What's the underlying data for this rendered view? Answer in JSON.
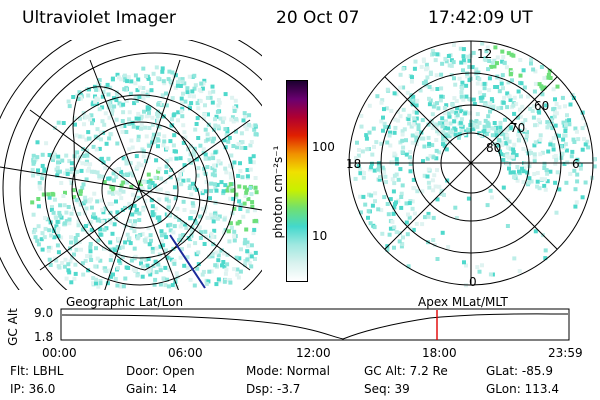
{
  "header": {
    "title": "Ultraviolet Imager",
    "date": "20 Oct 07",
    "time": "17:42:09 UT"
  },
  "colorbar": {
    "unit_label": "photon cm⁻²s⁻¹",
    "ticks": [
      "100",
      "10"
    ],
    "colors": [
      "#ffffff",
      "#d8f2ee",
      "#9fe8e0",
      "#43d8cc",
      "#70e070",
      "#c8f000",
      "#f0e000",
      "#f09000",
      "#e02000",
      "#b00030",
      "#6a0070",
      "#1c0030"
    ]
  },
  "left_panel": {
    "name": "geographic-projection"
  },
  "right_panel": {
    "mlt_labels": {
      "top": "12",
      "right": "6",
      "bottom": "0",
      "left": "18"
    },
    "lat_labels": [
      "60",
      "70",
      "80"
    ]
  },
  "timeline": {
    "left_title": "Geographic Lat/Lon",
    "right_title": "Apex MLat/MLT",
    "y_label": "GC Alt",
    "y_ticks": [
      "9.0",
      "1.8"
    ],
    "x_ticks": [
      "00:00",
      "06:00",
      "12:00",
      "18:00",
      "23:59"
    ],
    "current_time_marker": "17:42"
  },
  "status": {
    "row1": [
      {
        "key": "Flt:",
        "value": "LBHL"
      },
      {
        "key": "Door:",
        "value": "Open"
      },
      {
        "key": "Mode:",
        "value": "Normal"
      },
      {
        "key": "GC Alt:",
        "value": "7.2 Re"
      },
      {
        "key": "GLat:",
        "value": "-85.9"
      }
    ],
    "row2": [
      {
        "key": "IP:",
        "value": "36.0"
      },
      {
        "key": "Gain:",
        "value": "14"
      },
      {
        "key": "Dsp:",
        "value": "-3.7"
      },
      {
        "key": "Seq:",
        "value": "39"
      },
      {
        "key": "GLon:",
        "value": "113.4"
      }
    ]
  }
}
